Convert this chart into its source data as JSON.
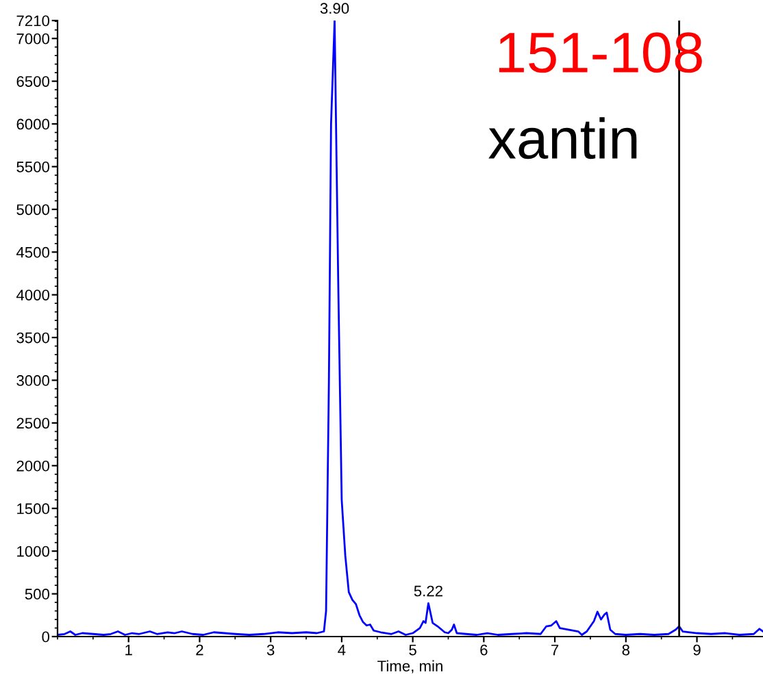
{
  "chart_data": {
    "type": "line",
    "xlabel": "Time, min",
    "xlim": [
      0,
      9.93
    ],
    "xticks": [
      1,
      2,
      3,
      4,
      5,
      6,
      7,
      8,
      9
    ],
    "ylim": [
      0,
      7210
    ],
    "yticks": [
      0,
      500,
      1000,
      1500,
      2000,
      2500,
      3000,
      3500,
      4000,
      4500,
      5000,
      5500,
      6000,
      6500,
      7000,
      7210
    ],
    "series": [
      {
        "color": "#0000ff",
        "x": [
          0,
          0.1,
          0.18,
          0.25,
          0.35,
          0.5,
          0.65,
          0.75,
          0.85,
          0.95,
          1.05,
          1.15,
          1.3,
          1.4,
          1.55,
          1.65,
          1.75,
          1.9,
          2.05,
          2.2,
          2.35,
          2.5,
          2.7,
          2.9,
          3.0,
          3.1,
          3.3,
          3.5,
          3.65,
          3.75,
          3.78,
          3.82,
          3.85,
          3.9,
          3.95,
          4.0,
          4.05,
          4.1,
          4.15,
          4.2,
          4.25,
          4.3,
          4.35,
          4.4,
          4.45,
          4.55,
          4.7,
          4.8,
          4.9,
          5.0,
          5.1,
          5.15,
          5.18,
          5.22,
          5.28,
          5.35,
          5.45,
          5.5,
          5.55,
          5.58,
          5.62,
          5.75,
          5.9,
          6.05,
          6.2,
          6.4,
          6.6,
          6.8,
          6.88,
          6.95,
          7.02,
          7.07,
          7.2,
          7.33,
          7.38,
          7.45,
          7.55,
          7.6,
          7.65,
          7.7,
          7.73,
          7.78,
          7.85,
          8.0,
          8.2,
          8.4,
          8.6,
          8.7,
          8.75,
          8.8,
          9.0,
          9.2,
          9.4,
          9.6,
          9.8,
          9.88,
          9.93
        ],
        "values": [
          20,
          30,
          60,
          20,
          40,
          30,
          20,
          30,
          60,
          20,
          40,
          30,
          60,
          30,
          50,
          40,
          60,
          30,
          20,
          50,
          40,
          30,
          20,
          30,
          40,
          50,
          40,
          50,
          40,
          60,
          300,
          3000,
          6000,
          7210,
          4200,
          1600,
          950,
          520,
          430,
          380,
          250,
          170,
          130,
          140,
          70,
          50,
          30,
          60,
          20,
          40,
          100,
          180,
          160,
          390,
          160,
          120,
          50,
          40,
          80,
          140,
          40,
          30,
          20,
          40,
          20,
          30,
          40,
          30,
          120,
          130,
          180,
          100,
          80,
          60,
          20,
          60,
          180,
          290,
          200,
          260,
          280,
          80,
          30,
          20,
          30,
          20,
          30,
          80,
          120,
          60,
          40,
          30,
          40,
          20,
          30,
          90,
          60
        ]
      }
    ],
    "ref_lines": [
      {
        "axis": "x",
        "value": 8.75,
        "color": "#000000"
      }
    ],
    "annotations": [
      {
        "text": "3.90",
        "x": 3.9,
        "y": 7210
      },
      {
        "text": "5.22",
        "x": 5.22,
        "y": 390
      },
      "151-108",
      "xantin"
    ],
    "grid": false,
    "legend": false
  }
}
